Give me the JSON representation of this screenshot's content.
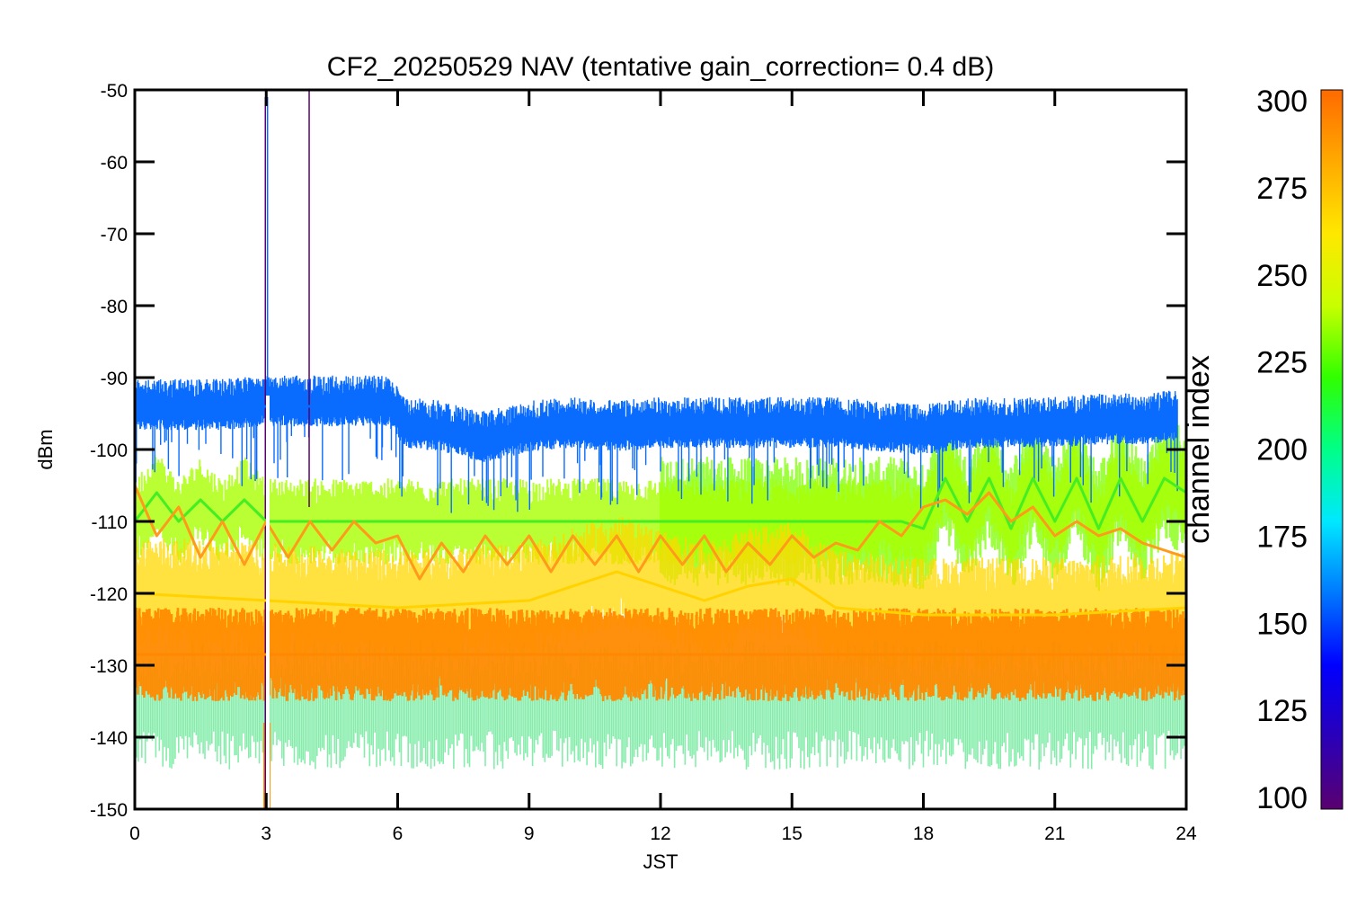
{
  "chart_data": {
    "type": "line",
    "title": "CF2_20250529 NAV (tentative gain_correction=  0.4 dB)",
    "xlabel": "JST",
    "ylabel": "dBm",
    "xlim": [
      0,
      24
    ],
    "ylim": [
      -150,
      -50
    ],
    "x_ticks": [
      "0",
      "3",
      "6",
      "9",
      "12",
      "15",
      "18",
      "21",
      "24"
    ],
    "y_ticks": [
      "-50",
      "-60",
      "-70",
      "-80",
      "-90",
      "-100",
      "-110",
      "-120",
      "-130",
      "-140",
      "-150"
    ],
    "grid": false,
    "colorbar": {
      "label": "channel index",
      "range": [
        100,
        300
      ],
      "ticks": [
        "300",
        "275",
        "250",
        "225",
        "200",
        "175",
        "150",
        "125",
        "100"
      ],
      "colormap": [
        "#5a0070",
        "#2a00b8",
        "#0000ff",
        "#0078ff",
        "#00e8ff",
        "#00ff88",
        "#30ff00",
        "#c8ff00",
        "#ffe800",
        "#ffaa00",
        "#ff6a00"
      ]
    },
    "series": [
      {
        "channel": 150,
        "color": "#0a6cff",
        "x": [
          0,
          2,
          3,
          4,
          5,
          5.8,
          6.2,
          7,
          8,
          9,
          10,
          11,
          12,
          13,
          14,
          15,
          16,
          17,
          18,
          19,
          20,
          21,
          22,
          23,
          23.8
        ],
        "y": [
          -94.5,
          -94.5,
          -94,
          -94,
          -94,
          -94,
          -97,
          -97.5,
          -99,
          -97.5,
          -97,
          -97.5,
          -97,
          -97,
          -97,
          -97,
          -97,
          -97.5,
          -98,
          -97,
          -97,
          -97,
          -96.5,
          -96.5,
          -96
        ]
      },
      {
        "channel": 240,
        "color": "#44ee22",
        "x": [
          0,
          0.5,
          1,
          1.5,
          2,
          2.5,
          3,
          5,
          8,
          10,
          12,
          14,
          16,
          17.5,
          18,
          18.5,
          19,
          19.5,
          20,
          20.5,
          21,
          21.5,
          22,
          22.5,
          23,
          23.5,
          24
        ],
        "y": [
          -110,
          -106,
          -110,
          -107,
          -110,
          -107,
          -110,
          -110,
          -110,
          -110,
          -110,
          -110,
          -110,
          -110,
          -111,
          -104,
          -110,
          -104,
          -111,
          -104,
          -110,
          -104,
          -111,
          -104,
          -110,
          -104,
          -106
        ]
      },
      {
        "channel": 285,
        "color": "#ff9a1a",
        "x": [
          0,
          0.5,
          1,
          1.5,
          2,
          2.5,
          3,
          3.5,
          4,
          4.5,
          5,
          5.5,
          6,
          6.5,
          7,
          7.5,
          8,
          8.5,
          9,
          9.5,
          10,
          10.5,
          11,
          11.5,
          12,
          12.5,
          13,
          13.5,
          14,
          14.5,
          15,
          15.5,
          16,
          16.5,
          17,
          17.5,
          18,
          18.5,
          19,
          19.5,
          20,
          20.5,
          21,
          21.5,
          22,
          22.5,
          23,
          23.5,
          24
        ],
        "y": [
          -105,
          -112,
          -108,
          -115,
          -110,
          -116,
          -110,
          -115,
          -110,
          -114,
          -110,
          -113,
          -112,
          -118,
          -113,
          -117,
          -112,
          -116,
          -112,
          -117,
          -112,
          -116,
          -112,
          -117,
          -112,
          -116,
          -112,
          -117,
          -113,
          -116,
          -112,
          -115,
          -113,
          -114,
          -110,
          -112,
          -108,
          -107,
          -109,
          -106,
          -110,
          -108,
          -112,
          -110,
          -112,
          -111,
          -113,
          -114,
          -115
        ]
      },
      {
        "channel": 275,
        "color": "#ffd200",
        "x": [
          0,
          3,
          6,
          9,
          10,
          11,
          12,
          13,
          14,
          15,
          16,
          18,
          21,
          24
        ],
        "y": [
          -120,
          -121,
          -122,
          -121,
          -119,
          -117,
          -119,
          -121,
          -119,
          -118,
          -122,
          -123,
          -123,
          -122
        ]
      },
      {
        "channel": 295,
        "color": "#ff8800",
        "x": [
          0,
          24
        ],
        "y": [
          -128.5,
          -128.5
        ]
      }
    ]
  }
}
